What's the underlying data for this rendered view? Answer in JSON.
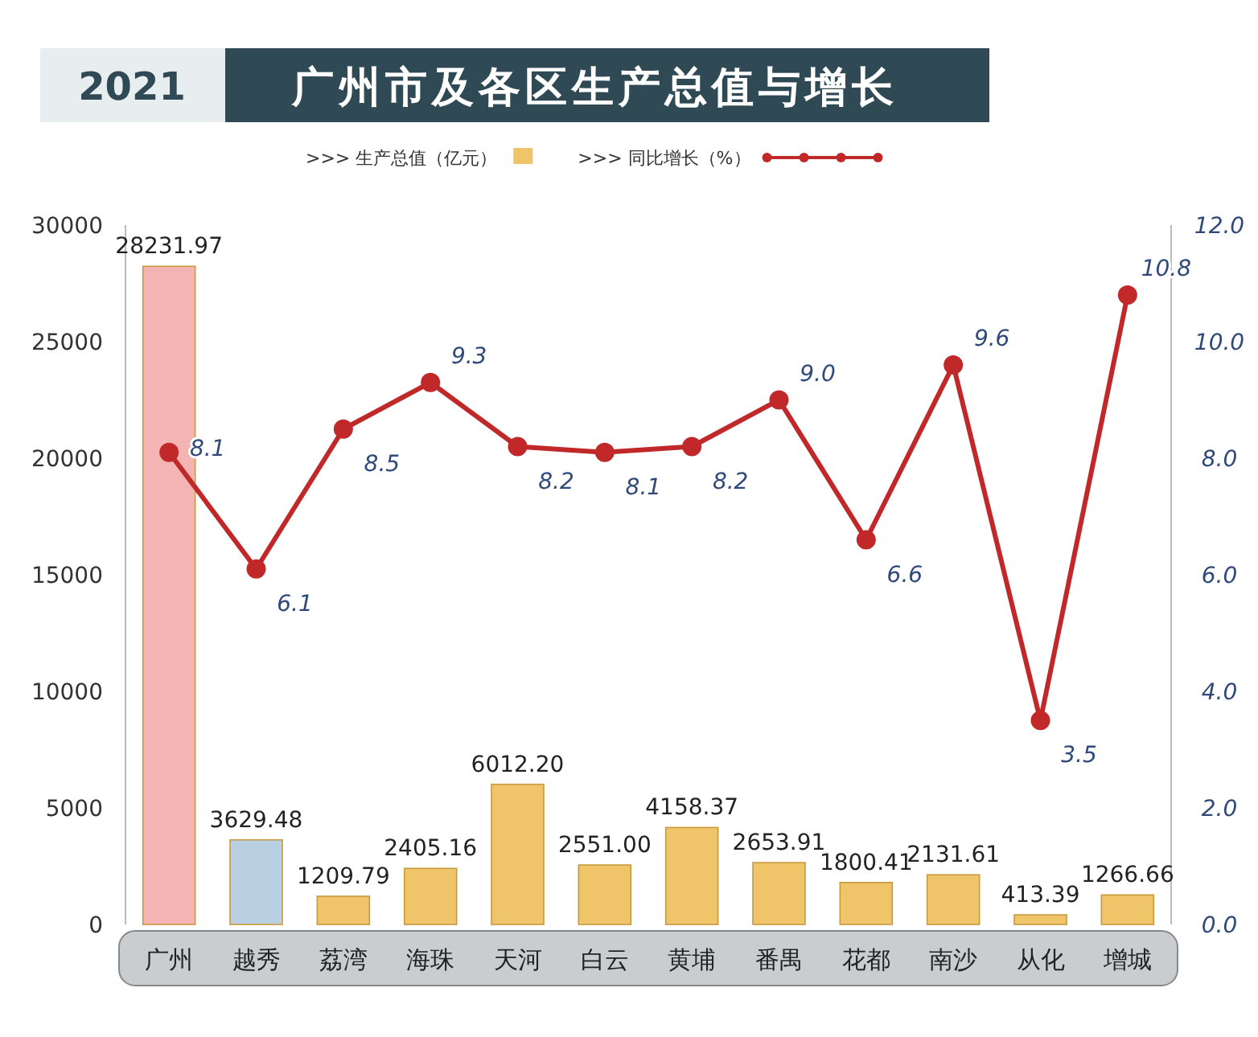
{
  "chart_data": {
    "type": "bar",
    "title": "广州市及各区生产总值与增长",
    "subtitle": "2021",
    "categories": [
      "广州",
      "越秀",
      "荔湾",
      "海珠",
      "天河",
      "白云",
      "黄埔",
      "番禺",
      "花都",
      "南沙",
      "从化",
      "增城"
    ],
    "series": [
      {
        "name": ">>> 生产总值（亿元）",
        "color": "#f0c468",
        "colors": [
          "#f4b4b4",
          "#b8d0e2",
          "#f0c468",
          "#f0c468",
          "#f0c468",
          "#f0c468",
          "#f0c468",
          "#f0c468",
          "#f0c468",
          "#f0c468",
          "#f0c468",
          "#f0c468"
        ],
        "values": [
          28231.97,
          3629.48,
          1209.79,
          2405.16,
          6012.2,
          2551.0,
          4158.37,
          2653.91,
          1800.41,
          2131.61,
          413.39,
          1266.66
        ],
        "value_labels": [
          "28231.97",
          "3629.48",
          "1209.79",
          "2405.16",
          "6012.20",
          "2551.00",
          "4158.37",
          "2653.91",
          "1800.41",
          "2131.61",
          "413.39",
          "1266.66"
        ]
      },
      {
        "name": ">>> 同比增长（%）",
        "type": "line",
        "axis": "y2",
        "color": "#c0282a",
        "values": [
          8.1,
          6.1,
          8.5,
          9.3,
          8.2,
          8.1,
          8.2,
          9.0,
          6.6,
          9.6,
          3.5,
          10.8
        ],
        "value_labels": [
          "8.1",
          "6.1",
          "8.5",
          "9.3",
          "8.2",
          "8.1",
          "8.2",
          "9.0",
          "6.6",
          "9.6",
          "3.5",
          "10.8"
        ]
      }
    ],
    "ylim": [
      0,
      30000
    ],
    "yticks": [
      0,
      5000,
      10000,
      15000,
      20000,
      25000,
      30000
    ],
    "y2lim": [
      0,
      12
    ],
    "y2ticks": [
      {
        "value": 0,
        "label": "0.0"
      },
      {
        "value": 2,
        "label": "2.0"
      },
      {
        "value": 4,
        "label": "4.0"
      },
      {
        "value": 6,
        "label": "6.0"
      },
      {
        "value": 8,
        "label": "8.0"
      },
      {
        "value": 10,
        "label": "10.0"
      },
      {
        "value": 12,
        "label": "12.0"
      }
    ],
    "marker": "circle",
    "legend": "top"
  }
}
